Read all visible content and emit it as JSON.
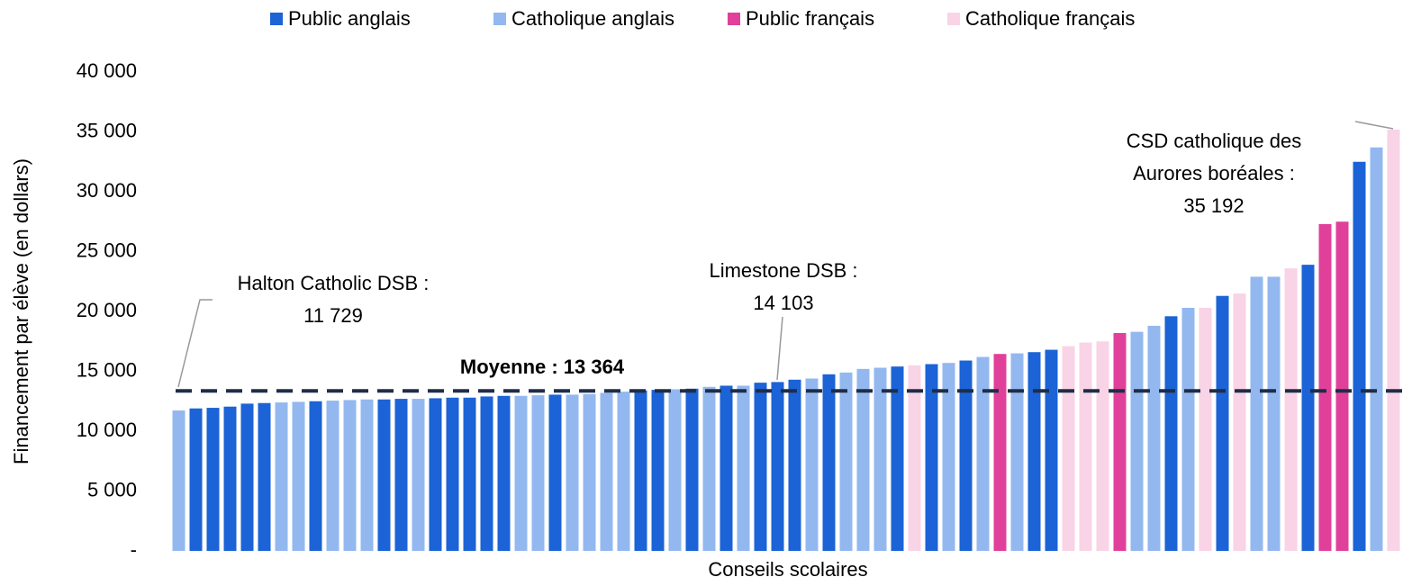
{
  "chart_data": {
    "type": "bar",
    "categories": [
      null,
      null,
      null,
      null,
      null,
      null,
      null,
      null,
      null,
      null,
      null,
      null,
      null,
      null,
      null,
      null,
      null,
      null,
      null,
      null,
      null,
      null,
      null,
      null,
      null,
      null,
      null,
      null,
      null,
      null,
      null,
      null,
      null,
      null,
      null,
      null,
      null,
      null,
      null,
      null,
      null,
      null,
      null,
      null,
      null,
      null,
      null,
      null,
      null,
      null,
      null,
      null,
      null,
      null,
      null,
      null,
      null,
      null,
      null,
      null,
      null,
      null,
      null,
      null,
      null,
      null,
      null,
      null,
      null,
      null,
      null,
      null
    ],
    "series": [
      {
        "name": "Public anglais",
        "color": "#1b63d6",
        "values": [
          null,
          11900,
          11950,
          12050,
          12300,
          12350,
          null,
          null,
          12500,
          null,
          null,
          null,
          12650,
          12700,
          null,
          12750,
          12800,
          12800,
          12900,
          12950,
          null,
          null,
          13050,
          null,
          null,
          null,
          null,
          13400,
          13450,
          null,
          13550,
          null,
          13800,
          null,
          14050,
          14103,
          14300,
          null,
          14750,
          null,
          null,
          null,
          15400,
          null,
          15600,
          null,
          15900,
          null,
          null,
          null,
          16600,
          16800,
          null,
          null,
          null,
          null,
          null,
          null,
          19600,
          null,
          null,
          21300,
          null,
          null,
          null,
          null,
          23900,
          null,
          null,
          32500,
          null,
          null
        ]
      },
      {
        "name": "Catholique anglais",
        "color": "#93b8f0",
        "values": [
          11729,
          null,
          null,
          null,
          null,
          null,
          12400,
          12450,
          null,
          12550,
          12600,
          12650,
          null,
          null,
          12700,
          null,
          null,
          null,
          null,
          null,
          12950,
          13000,
          null,
          13050,
          13100,
          13200,
          13300,
          null,
          null,
          13500,
          null,
          13700,
          null,
          13800,
          null,
          null,
          null,
          14400,
          null,
          14900,
          15200,
          15300,
          null,
          null,
          null,
          15700,
          null,
          16200,
          null,
          16500,
          null,
          null,
          null,
          null,
          null,
          null,
          18300,
          18800,
          null,
          20300,
          null,
          null,
          null,
          22900,
          22900,
          null,
          null,
          null,
          null,
          null,
          33700,
          null
        ]
      },
      {
        "name": "Public français",
        "color": "#e0409a",
        "values": [
          null,
          null,
          null,
          null,
          null,
          null,
          null,
          null,
          null,
          null,
          null,
          null,
          null,
          null,
          null,
          null,
          null,
          null,
          null,
          null,
          null,
          null,
          null,
          null,
          null,
          null,
          null,
          null,
          null,
          null,
          null,
          null,
          null,
          null,
          null,
          null,
          null,
          null,
          null,
          null,
          null,
          null,
          null,
          null,
          null,
          null,
          null,
          null,
          16450,
          null,
          null,
          null,
          null,
          null,
          null,
          18200,
          null,
          null,
          null,
          null,
          null,
          null,
          null,
          null,
          null,
          null,
          null,
          27300,
          27500,
          null,
          null,
          null
        ]
      },
      {
        "name": "Catholique français",
        "color": "#f9d3e6",
        "values": [
          null,
          null,
          null,
          null,
          null,
          null,
          null,
          null,
          null,
          null,
          null,
          null,
          null,
          null,
          null,
          null,
          null,
          null,
          null,
          null,
          null,
          null,
          null,
          null,
          null,
          null,
          null,
          null,
          null,
          null,
          null,
          null,
          null,
          null,
          null,
          null,
          null,
          null,
          null,
          null,
          null,
          null,
          null,
          15500,
          null,
          null,
          null,
          null,
          null,
          null,
          null,
          null,
          17100,
          17400,
          17500,
          null,
          null,
          null,
          null,
          null,
          20300,
          null,
          21500,
          null,
          null,
          23600,
          null,
          null,
          null,
          null,
          null,
          35192
        ]
      }
    ],
    "ylim": [
      0,
      40000
    ],
    "yticks": [
      {
        "value": 0,
        "label": "-"
      },
      {
        "value": 5000,
        "label": "5 000"
      },
      {
        "value": 10000,
        "label": "10 000"
      },
      {
        "value": 15000,
        "label": "15 000"
      },
      {
        "value": 20000,
        "label": "20 000"
      },
      {
        "value": 25000,
        "label": "25 000"
      },
      {
        "value": 30000,
        "label": "30 000"
      },
      {
        "value": 35000,
        "label": "35 000"
      },
      {
        "value": 40000,
        "label": "40 000"
      }
    ],
    "y_label": "Financement par élève (en dollars)",
    "x_label": "Conseils scolaires",
    "average": 13364,
    "average_label": "Moyenne : 13 364",
    "annotations": [
      [
        "Halton Catholic DSB :",
        "11 729"
      ],
      [
        "Limestone DSB :",
        "14 103"
      ],
      [
        "CSD catholique des",
        "Aurores boréales :",
        "35 192"
      ]
    ],
    "legend": "top",
    "grid": false
  }
}
